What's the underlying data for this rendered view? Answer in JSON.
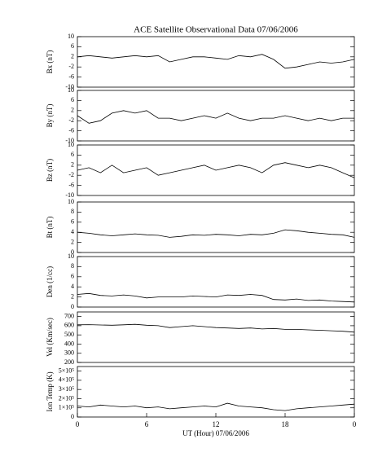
{
  "chart_data": [
    {
      "type": "line",
      "title": "ACE Satellite Observational Data   07/06/2006",
      "ylabel": "Bx (nT)",
      "color": "#000000",
      "x": [
        0,
        1,
        2,
        3,
        4,
        5,
        6,
        7,
        8,
        9,
        10,
        11,
        12,
        13,
        14,
        15,
        16,
        17,
        18,
        19,
        20,
        21,
        22,
        23,
        24
      ],
      "values": [
        2,
        2.5,
        2,
        1.5,
        2,
        2.5,
        2,
        2.5,
        0,
        1,
        2,
        2,
        1.5,
        1,
        2.5,
        2,
        3,
        1,
        -2.5,
        -2,
        -1,
        0,
        -0.5,
        0,
        1
      ],
      "xlim": [
        0,
        24
      ],
      "ylim": [
        -10,
        10
      ],
      "yticks": [
        -10,
        -6,
        -2,
        2,
        6,
        10
      ]
    },
    {
      "type": "line",
      "ylabel": "By (nT)",
      "color": "#000000",
      "x": [
        0,
        1,
        2,
        3,
        4,
        5,
        6,
        7,
        8,
        9,
        10,
        11,
        12,
        13,
        14,
        15,
        16,
        17,
        18,
        19,
        20,
        21,
        22,
        23,
        24
      ],
      "values": [
        0,
        -3,
        -2,
        1,
        2,
        1,
        2,
        -1,
        -1,
        -2,
        -1,
        0,
        -1,
        1,
        -1,
        -2,
        -1,
        -1,
        0,
        -1,
        -2,
        -1,
        -2,
        -1,
        -1
      ],
      "xlim": [
        0,
        24
      ],
      "ylim": [
        -10,
        10
      ],
      "yticks": [
        -10,
        -6,
        -2,
        2,
        6,
        10
      ]
    },
    {
      "type": "line",
      "ylabel": "Bz (nT)",
      "color": "#000000",
      "x": [
        0,
        1,
        2,
        3,
        4,
        5,
        6,
        7,
        8,
        9,
        10,
        11,
        12,
        13,
        14,
        15,
        16,
        17,
        18,
        19,
        20,
        21,
        22,
        23,
        24
      ],
      "values": [
        0,
        1,
        -1,
        2,
        -1,
        0,
        1,
        -2,
        -1,
        0,
        1,
        2,
        0,
        1,
        2,
        1,
        -1,
        2,
        3,
        2,
        1,
        2,
        1,
        -1,
        -3
      ],
      "xlim": [
        0,
        24
      ],
      "ylim": [
        -10,
        10
      ],
      "yticks": [
        -10,
        -6,
        -2,
        2,
        6,
        10
      ]
    },
    {
      "type": "line",
      "ylabel": "Bt (nT)",
      "color": "#000000",
      "x": [
        0,
        1,
        2,
        3,
        4,
        5,
        6,
        7,
        8,
        9,
        10,
        11,
        12,
        13,
        14,
        15,
        16,
        17,
        18,
        19,
        20,
        21,
        22,
        23,
        24
      ],
      "values": [
        4,
        3.8,
        3.5,
        3.3,
        3.5,
        3.7,
        3.5,
        3.4,
        3,
        3.2,
        3.5,
        3.4,
        3.6,
        3.5,
        3.3,
        3.6,
        3.5,
        3.8,
        4.5,
        4.3,
        4,
        3.8,
        3.6,
        3.5,
        3
      ],
      "xlim": [
        0,
        24
      ],
      "ylim": [
        0,
        10
      ],
      "yticks": [
        0,
        2,
        4,
        6,
        8,
        10
      ]
    },
    {
      "type": "line",
      "ylabel": "Den (1/cc)",
      "color": "#000000",
      "x": [
        0,
        1,
        2,
        3,
        4,
        5,
        6,
        7,
        8,
        9,
        10,
        11,
        12,
        13,
        14,
        15,
        16,
        17,
        18,
        19,
        20,
        21,
        22,
        23,
        24
      ],
      "values": [
        2.5,
        2.7,
        2.3,
        2.2,
        2.4,
        2.2,
        1.8,
        2,
        2,
        2,
        2.2,
        2.1,
        2,
        2.4,
        2.3,
        2.5,
        2.3,
        1.5,
        1.4,
        1.6,
        1.3,
        1.4,
        1.2,
        1.1,
        1
      ],
      "xlim": [
        0,
        24
      ],
      "ylim": [
        0,
        10
      ],
      "yticks": [
        0,
        2,
        4,
        6,
        8,
        10
      ]
    },
    {
      "type": "line",
      "ylabel": "Vel (Km/sec)",
      "color": "#000000",
      "x": [
        0,
        1,
        2,
        3,
        4,
        5,
        6,
        7,
        8,
        9,
        10,
        11,
        12,
        13,
        14,
        15,
        16,
        17,
        18,
        19,
        20,
        21,
        22,
        23,
        24
      ],
      "values": [
        610,
        612,
        608,
        605,
        610,
        615,
        605,
        600,
        580,
        590,
        600,
        590,
        580,
        575,
        570,
        575,
        565,
        570,
        560,
        560,
        555,
        550,
        545,
        540,
        530
      ],
      "xlim": [
        0,
        24
      ],
      "ylim": [
        200,
        750
      ],
      "yticks": [
        200,
        300,
        400,
        500,
        600,
        700
      ]
    },
    {
      "type": "line",
      "ylabel": "Ion Temp (K)",
      "xlabel": "UT (Hour)   07/06/2006",
      "color": "#000000",
      "x": [
        0,
        1,
        2,
        3,
        4,
        5,
        6,
        7,
        8,
        9,
        10,
        11,
        12,
        13,
        14,
        15,
        16,
        17,
        18,
        19,
        20,
        21,
        22,
        23,
        24
      ],
      "values": [
        120000,
        110000,
        130000,
        120000,
        110000,
        120000,
        100000,
        110000,
        90000,
        100000,
        110000,
        120000,
        110000,
        150000,
        120000,
        110000,
        100000,
        80000,
        70000,
        90000,
        100000,
        110000,
        120000,
        130000,
        140000
      ],
      "xlim": [
        0,
        24
      ],
      "ylim": [
        0,
        550000
      ],
      "yticks": [
        0,
        {
          "value": 100000,
          "label": "1×10⁵"
        },
        {
          "value": 200000,
          "label": "2×10⁵"
        },
        {
          "value": 300000,
          "label": "3×10⁵"
        },
        {
          "value": 400000,
          "label": "4×10⁵"
        },
        {
          "value": 500000,
          "label": "5×10⁵"
        }
      ],
      "xticks": [
        0,
        6,
        12,
        18,
        {
          "value": 24,
          "label": "0"
        }
      ]
    }
  ]
}
